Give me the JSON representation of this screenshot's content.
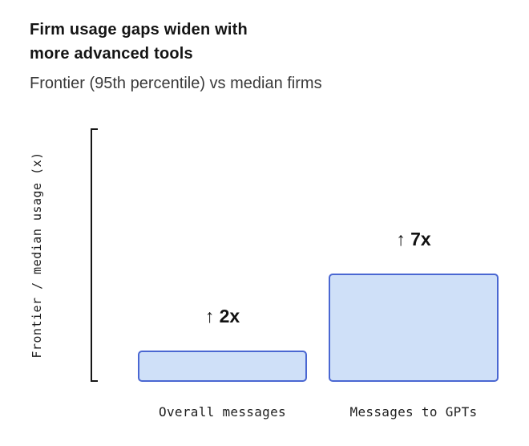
{
  "chart_data": {
    "type": "bar",
    "title": "Firm usage gaps widen with more advanced tools",
    "title_lines": [
      "Firm usage gaps widen with",
      "more advanced tools"
    ],
    "subtitle": "Frontier (95th percentile) vs median firms",
    "ylabel": "Frontier / median usage (x)",
    "categories": [
      "Overall messages",
      "Messages to GPTs"
    ],
    "values": [
      2,
      7
    ],
    "annotations": [
      "↑ 2x",
      "↑ 7x"
    ],
    "ylim": [
      0,
      8
    ],
    "grid": false,
    "legend": "none",
    "colors": {
      "bar_fill": "#cfe0f8",
      "bar_border": "#4a67d2",
      "axis": "#161616",
      "text": "#141414"
    }
  }
}
